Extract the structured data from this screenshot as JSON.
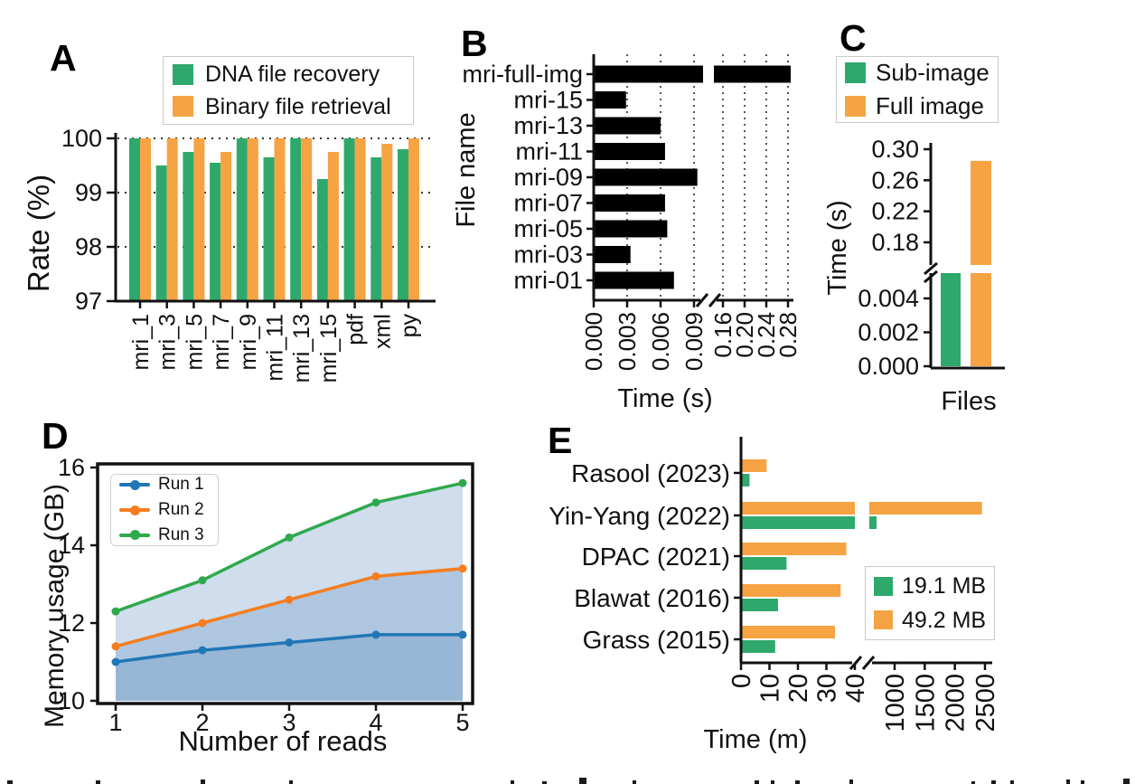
{
  "figure_type": "five-panel scientific figure",
  "colors": {
    "green": "#2fa96b",
    "orange": "#f6a343",
    "black_bar": "#000000",
    "run1_blue": "#2176b5",
    "run2_orange": "#f57d1f",
    "run3_green": "#2fa94e",
    "area_fill": "rgba(106,148,197,0.32)"
  },
  "chart_data": [
    {
      "panel": "A",
      "type": "bar",
      "orientation": "vertical",
      "ylabel": "Rate (%)",
      "ylim": [
        97,
        100
      ],
      "yticks": [
        "97",
        "98",
        "99",
        "100"
      ],
      "gridlines": "dotted horizontal at 98, 99, 100",
      "categories": [
        "mri_1",
        "mri_3",
        "mri_5",
        "mri_7",
        "mri_9",
        "mri_11",
        "mri_13",
        "mri_15",
        "pdf",
        "xml",
        "py"
      ],
      "series": [
        {
          "name": "DNA file recovery",
          "color": "#2fa96b",
          "values": [
            100,
            99.5,
            99.75,
            99.55,
            100,
            99.65,
            100,
            99.25,
            100,
            99.65,
            99.8
          ]
        },
        {
          "name": "Binary file retrieval",
          "color": "#f6a343",
          "values": [
            100,
            100,
            100,
            99.75,
            100,
            100,
            100,
            99.75,
            100,
            99.9,
            100
          ]
        }
      ],
      "legend_position": "top"
    },
    {
      "panel": "B",
      "type": "bar",
      "orientation": "horizontal",
      "xlabel": "Time (s)",
      "ylabel": "File name",
      "bar_color": "#000000",
      "categories": [
        "mri-full-img",
        "mri-15",
        "mri-13",
        "mri-11",
        "mri-09",
        "mri-07",
        "mri-05",
        "mri-03",
        "mri-01"
      ],
      "values": [
        0.285,
        0.0029,
        0.006,
        0.0064,
        0.0093,
        0.0064,
        0.0066,
        0.0033,
        0.0072
      ],
      "axis_break": {
        "axis": "x",
        "left_ticks": [
          "0.000",
          "0.003",
          "0.006",
          "0.009"
        ],
        "right_ticks": [
          "0.16",
          "0.20",
          "0.24",
          "0.28"
        ]
      },
      "gridlines": "dotted vertical at each tick"
    },
    {
      "panel": "C",
      "type": "bar",
      "orientation": "vertical",
      "xlabel": "Files",
      "ylabel": "Time (s)",
      "series": [
        {
          "name": "Sub-image",
          "color": "#2fa96b",
          "value": 0.0055,
          "note": "bar clipped at axis break"
        },
        {
          "name": "Full image",
          "color": "#f6a343",
          "value": 0.285
        }
      ],
      "axis_break": {
        "axis": "y",
        "lower_ticks": [
          "0.000",
          "0.002",
          "0.004"
        ],
        "upper_ticks": [
          "0.18",
          "0.22",
          "0.26",
          "0.30"
        ]
      },
      "legend_position": "top"
    },
    {
      "panel": "D",
      "type": "line",
      "xlabel": "Number of reads",
      "ylabel": "Memory usage (GB)",
      "x": [
        1,
        2,
        3,
        4,
        5
      ],
      "xticks": [
        "1",
        "2",
        "3",
        "4",
        "5"
      ],
      "yticks": [
        "10",
        "12",
        "14",
        "16"
      ],
      "ylim": [
        10,
        16
      ],
      "area_fill": "translucent blue under each line",
      "legend_position": "upper left",
      "series": [
        {
          "name": "Run 1",
          "color": "#2176b5",
          "values": [
            11.0,
            11.3,
            11.5,
            11.7,
            11.7
          ]
        },
        {
          "name": "Run 2",
          "color": "#f57d1f",
          "values": [
            11.4,
            12.0,
            12.6,
            13.2,
            13.4
          ]
        },
        {
          "name": "Run 3",
          "color": "#2fa94e",
          "values": [
            12.3,
            13.1,
            14.2,
            15.1,
            15.6
          ]
        }
      ]
    },
    {
      "panel": "E",
      "type": "bar",
      "orientation": "horizontal",
      "xlabel": "Time (m)",
      "categories": [
        "Rasool (2023)",
        "Yin-Yang (2022)",
        "DPAC (2021)",
        "Blawat (2016)",
        "Grass (2015)"
      ],
      "series": [
        {
          "name": "19.1 MB",
          "color": "#2fa96b",
          "values": [
            3,
            700,
            16,
            13,
            12
          ]
        },
        {
          "name": "49.2 MB",
          "color": "#f6a343",
          "values": [
            9,
            2450,
            37,
            35,
            33
          ]
        }
      ],
      "axis_break": {
        "axis": "x",
        "left_ticks": [
          "0",
          "10",
          "20",
          "30",
          "40"
        ],
        "right_ticks": [
          "1000",
          "1500",
          "2000",
          "2500"
        ]
      },
      "legend_position": "center right"
    }
  ]
}
